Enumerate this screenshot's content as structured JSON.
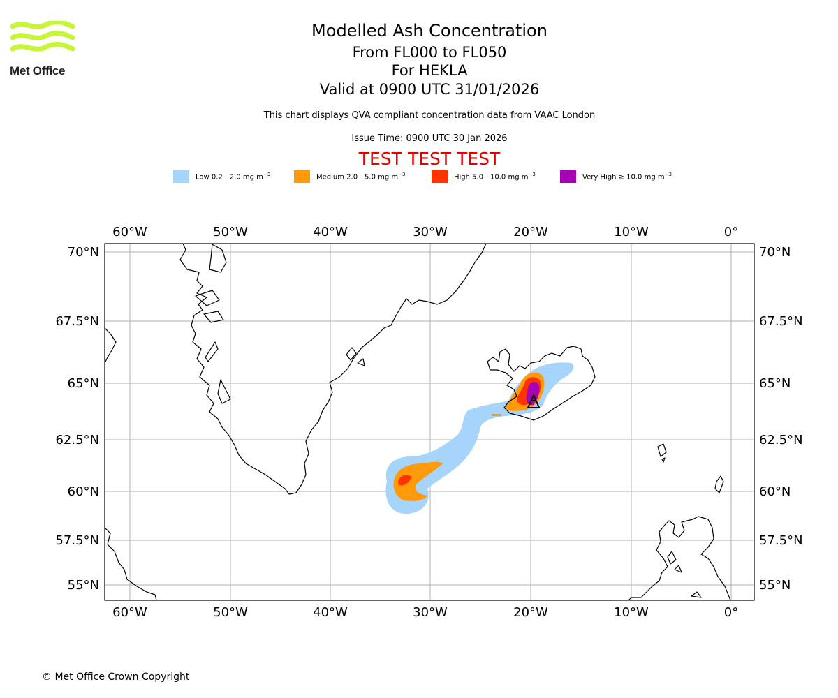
{
  "logo": {
    "name": "Met Office",
    "color": "#c8f53a"
  },
  "header": {
    "title": "Modelled Ash Concentration",
    "level_range": "From FL000 to FL050",
    "volcano": "For HEKLA",
    "valid_time": "Valid at 0900 UTC 31/01/2026",
    "disclaimer": "This chart displays QVA compliant concentration data from VAAC London",
    "issue_time": "Issue Time: 0900 UTC 30 Jan 2026",
    "test_banner": "TEST TEST TEST"
  },
  "legend": [
    {
      "label": "Low 0.2 - 2.0 mg m",
      "unit_exp": "−3",
      "color": "#a6d4fa"
    },
    {
      "label": "Medium 2.0 - 5.0 mg m",
      "unit_exp": "−3",
      "color": "#ff9a0a"
    },
    {
      "label": "High 5.0 - 10.0 mg m",
      "unit_exp": "−3",
      "color": "#ff3300"
    },
    {
      "label": "Very High ≥ 10.0 mg m",
      "unit_exp": "−3",
      "color": "#a800b4"
    }
  ],
  "map": {
    "lon_ticks": [
      "60°W",
      "50°W",
      "40°W",
      "30°W",
      "20°W",
      "10°W",
      "0°"
    ],
    "lat_ticks": [
      "70°N",
      "67.5°N",
      "65°N",
      "62.5°N",
      "60°N",
      "57.5°N",
      "55°N"
    ],
    "volcano_marker": "HEKLA",
    "colors": {
      "grid": "#b0b0b0",
      "coast": "#000000"
    }
  },
  "footer": {
    "copyright": "© Met Office Crown Copyright"
  }
}
